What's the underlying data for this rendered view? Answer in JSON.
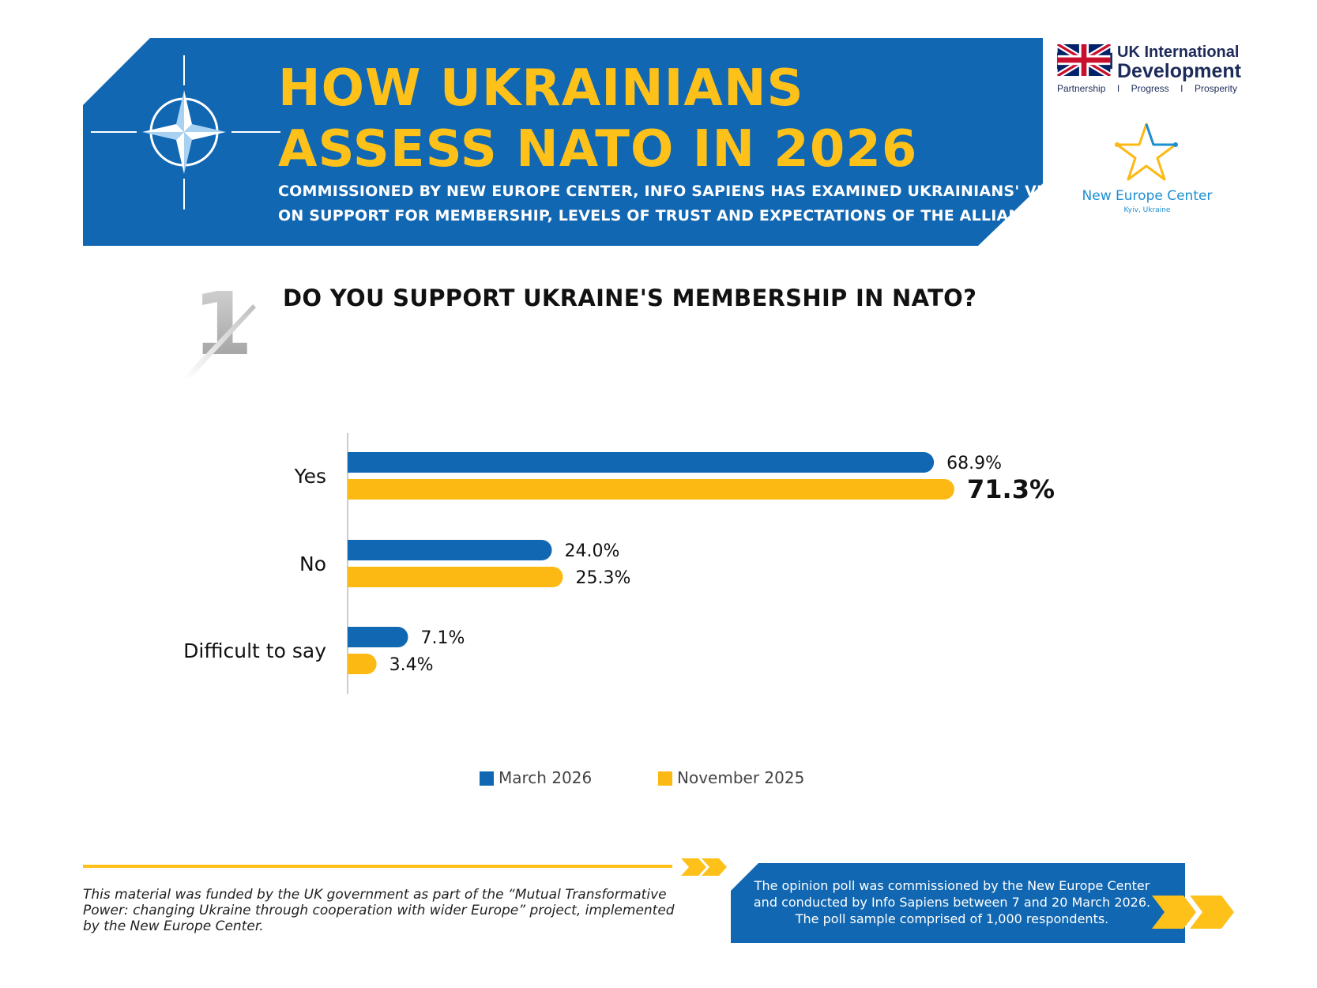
{
  "header": {
    "title_line1": "HOW UKRAINIANS",
    "title_line2": "ASSESS NATO IN 2026",
    "subtitle_line1": "COMMISSIONED BY NEW EUROPE CENTER, INFO SAPIENS HAS EXAMINED UKRAINIANS' VIEWS",
    "subtitle_line2": "ON SUPPORT FOR MEMBERSHIP, LEVELS OF TRUST AND EXPECTATIONS OF THE ALLIANCE"
  },
  "logos": {
    "uk_line1": "UK International",
    "uk_line2": "Development",
    "uk_tags": [
      "Partnership",
      "I",
      "Progress",
      "I",
      "Prosperity"
    ],
    "nec_name": "New Europe Center",
    "nec_city": "Kyiv, Ukraine"
  },
  "question": {
    "number": "1",
    "text": "DO YOU SUPPORT UKRAINE'S MEMBERSHIP IN NATO?"
  },
  "chart_data": {
    "type": "bar",
    "orientation": "horizontal",
    "title": "DO YOU SUPPORT UKRAINE'S MEMBERSHIP IN NATO?",
    "categories": [
      "Yes",
      "No",
      "Difficult to say"
    ],
    "series": [
      {
        "name": "March 2026",
        "color": "#1167b1",
        "values": [
          68.9,
          24.0,
          7.1
        ],
        "labels": [
          "68.9%",
          "24.0%",
          "7.1%"
        ]
      },
      {
        "name": "November 2025",
        "color": "#fdb913",
        "values": [
          71.3,
          25.3,
          3.4
        ],
        "labels": [
          "71.3%",
          "25.3%",
          "3.4%"
        ]
      }
    ],
    "highlight": {
      "series": 1,
      "category": 0
    },
    "xlim": [
      0,
      100
    ],
    "legend": "bottom-center",
    "grid": false
  },
  "footer": {
    "funding": "This material was funded by the UK government as part of the “Mutual Transformative Power: changing Ukraine through cooperation with wider Europe” project, implemented by the New Europe Center.",
    "poll_line1": "The opinion poll was commissioned by the New Europe Center",
    "poll_line2": "and conducted by Info Sapiens between 7 and 20 March 2026.",
    "poll_line3": "The poll sample comprised of 1,000 respondents."
  },
  "colors": {
    "blue": "#1167b1",
    "yellow": "#fdc11a"
  }
}
